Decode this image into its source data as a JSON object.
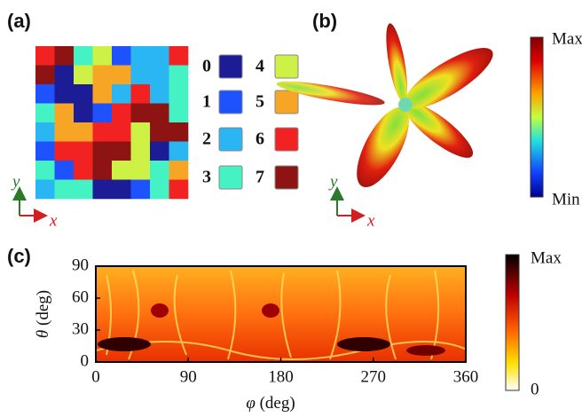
{
  "panel_a": {
    "label": "(a)",
    "codes": [
      [
        6,
        7,
        3,
        4,
        1,
        2,
        2,
        6
      ],
      [
        7,
        0,
        4,
        5,
        5,
        2,
        2,
        3
      ],
      [
        1,
        0,
        0,
        5,
        2,
        6,
        2,
        3
      ],
      [
        3,
        5,
        0,
        1,
        6,
        7,
        7,
        3
      ],
      [
        2,
        5,
        5,
        6,
        6,
        4,
        7,
        7
      ],
      [
        1,
        6,
        6,
        7,
        7,
        4,
        0,
        2
      ],
      [
        3,
        1,
        6,
        7,
        4,
        4,
        3,
        5
      ],
      [
        2,
        3,
        3,
        0,
        0,
        1,
        3,
        6
      ]
    ],
    "legend": [
      {
        "code": 0,
        "color": "#1c1c96"
      },
      {
        "code": 1,
        "color": "#1f52ff"
      },
      {
        "code": 2,
        "color": "#2ab6f2"
      },
      {
        "code": 3,
        "color": "#44f2c4"
      },
      {
        "code": 4,
        "color": "#cdf245"
      },
      {
        "code": 5,
        "color": "#f7a524"
      },
      {
        "code": 6,
        "color": "#f22222"
      },
      {
        "code": 7,
        "color": "#8e1414"
      }
    ],
    "axis_x": "x",
    "axis_y": "y"
  },
  "panel_b": {
    "label": "(b)",
    "colorbar_max": "Max",
    "colorbar_min": "Min",
    "axis_x": "x",
    "axis_y": "y"
  },
  "panel_c": {
    "label": "(c)",
    "xlabel_symbol": "φ",
    "xlabel_unit": "(deg)",
    "ylabel_symbol": "θ",
    "ylabel_unit": "(deg)",
    "xlim": [
      0,
      360
    ],
    "xticks": [
      0,
      90,
      180,
      270,
      360
    ],
    "ylim": [
      0,
      90
    ],
    "yticks": [
      0,
      30,
      60,
      90
    ],
    "colorbar_max": "Max",
    "colorbar_min": 0
  }
}
